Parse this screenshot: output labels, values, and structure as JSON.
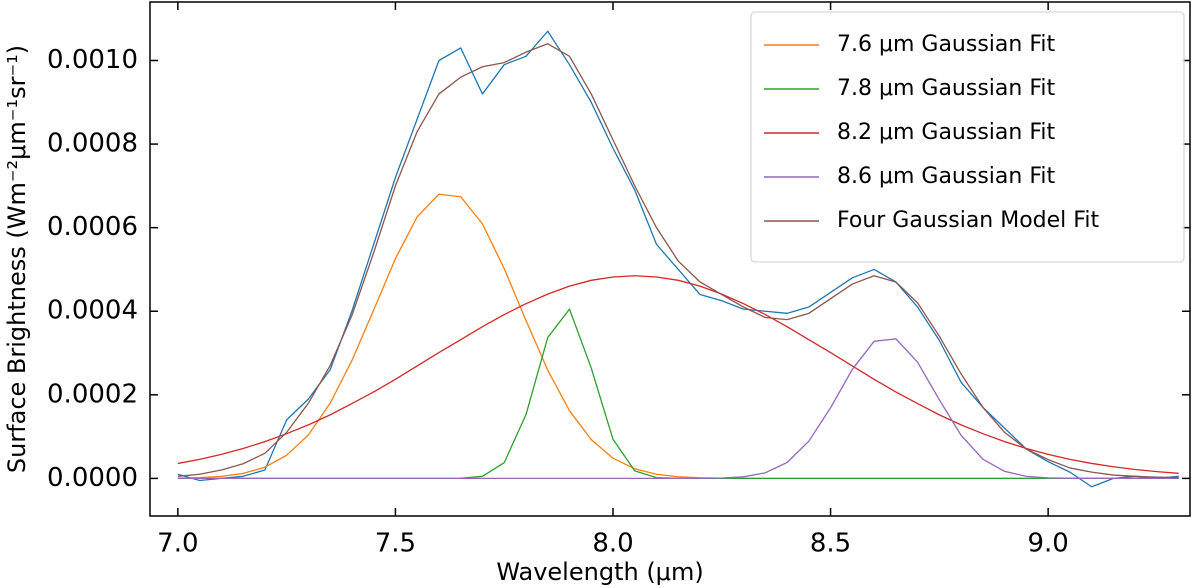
{
  "chart_data": {
    "type": "line",
    "x_label": "Wavelength (μm)",
    "y_label": "Surface Brightness (Wm⁻²μm⁻¹sr⁻¹)",
    "xlim": [
      6.936,
      9.326
    ],
    "ylim": [
      -9e-05,
      0.00114
    ],
    "xticks": [
      {
        "value": 7,
        "label": "7.0"
      },
      7.5,
      {
        "value": 8,
        "label": "8.0"
      },
      8.5,
      {
        "value": 9,
        "label": "9.0"
      }
    ],
    "yticks": [
      {
        "value": 0,
        "label": "0.0000"
      },
      0.0002,
      0.0004,
      0.0006,
      0.0008,
      {
        "value": 0.001,
        "label": "0.0010"
      }
    ],
    "legend": "upper right",
    "x": [
      7.0,
      7.05,
      7.1,
      7.15,
      7.2,
      7.25,
      7.3,
      7.35,
      7.4,
      7.45,
      7.5,
      7.55,
      7.6,
      7.65,
      7.7,
      7.75,
      7.8,
      7.85,
      7.9,
      7.95,
      8.0,
      8.05,
      8.1,
      8.15,
      8.2,
      8.25,
      8.3,
      8.35,
      8.4,
      8.45,
      8.5,
      8.55,
      8.6,
      8.65,
      8.7,
      8.75,
      8.8,
      8.85,
      8.9,
      8.95,
      9.0,
      9.05,
      9.1,
      9.15,
      9.2,
      9.25,
      9.3
    ],
    "series": [
      {
        "color": "#1f77b4",
        "values": [
          1e-05,
          -5e-06,
          0,
          5e-06,
          2e-05,
          0.00014,
          0.00019,
          0.00026,
          0.0004,
          0.00056,
          0.00072,
          0.00086,
          0.001,
          0.00103,
          0.00092,
          0.00099,
          0.00101,
          0.00107,
          0.00099,
          0.0009,
          0.00079,
          0.00069,
          0.00056,
          0.0005,
          0.00044,
          0.000425,
          0.000405,
          0.0004,
          0.000395,
          0.00041,
          0.000445,
          0.00048,
          0.0005,
          0.00047,
          0.00041,
          0.00033,
          0.00023,
          0.00017,
          0.00012,
          7e-05,
          4e-05,
          1.5e-05,
          -2e-05,
          0,
          5e-06,
          0,
          5e-06
        ]
      },
      {
        "name": "7.6 μm Gaussian Fit",
        "color": "#ff7f0e",
        "values": [
          6e-07,
          1.8e-06,
          4.8e-06,
          1.19e-05,
          2.68e-05,
          5.55e-05,
          0.000104,
          0.00018,
          0.000282,
          0.000403,
          0.000526,
          0.000626,
          0.00068,
          0.000674,
          0.000609,
          0.000502,
          0.000378,
          0.000259,
          0.000162,
          9.27e-05,
          4.83e-05,
          2.3e-05,
          1e-05,
          3.9e-06,
          1.4e-06,
          5e-07,
          1e-07,
          0,
          0,
          0,
          0,
          0,
          0,
          0,
          0,
          0,
          0,
          0,
          0,
          0,
          0,
          0,
          0,
          0,
          0,
          0,
          0
        ]
      },
      {
        "name": "7.8 μm Gaussian Fit",
        "color": "#2ca02c",
        "values": [
          0,
          0,
          0,
          0,
          0,
          0,
          0,
          0,
          0,
          0,
          0,
          0,
          0,
          4e-07,
          5e-06,
          3.75e-05,
          0.0001525,
          0.000337,
          0.000405,
          0.000264,
          9.36e-05,
          1.8e-05,
          1.9e-06,
          0,
          0,
          0,
          0,
          0,
          0,
          0,
          0,
          0,
          0,
          0,
          0,
          0,
          0,
          0,
          0,
          0,
          0,
          0,
          0,
          0,
          0,
          0,
          0
        ]
      },
      {
        "name": "8.2 μm Gaussian Fit",
        "color": "#d62728",
        "values": [
          3.58e-05,
          4.56e-05,
          5.75e-05,
          7.15e-05,
          8.8e-05,
          0.000107,
          0.000128,
          0.000152,
          0.000179,
          0.000207,
          0.000237,
          0.000269,
          0.000301,
          0.000332,
          0.000363,
          0.000392,
          0.000418,
          0.000441,
          0.00046,
          0.000474,
          0.000482,
          0.000485,
          0.000482,
          0.000474,
          0.00046,
          0.000441,
          0.000418,
          0.000392,
          0.000363,
          0.000332,
          0.000301,
          0.000269,
          0.000237,
          0.000207,
          0.000179,
          0.000152,
          0.000128,
          0.000107,
          8.8e-05,
          7.15e-05,
          5.75e-05,
          4.56e-05,
          3.58e-05,
          2.78e-05,
          2.13e-05,
          1.61e-05,
          1.21e-05
        ]
      },
      {
        "name": "8.6 μm Gaussian Fit",
        "color": "#9467bd",
        "values": [
          0,
          0,
          0,
          0,
          0,
          0,
          0,
          0,
          0,
          0,
          0,
          0,
          0,
          0,
          0,
          0,
          0,
          0,
          0,
          0,
          0,
          0,
          0,
          0,
          2e-07,
          9e-07,
          3.8e-06,
          1.33e-05,
          3.8e-05,
          8.9e-05,
          0.000169,
          0.000261,
          0.000328,
          0.000334,
          0.000278,
          0.000188,
          0.000103,
          4.6e-05,
          1.67e-05,
          4.9e-06,
          1.2e-06,
          2e-07,
          0,
          0,
          0,
          0,
          0
        ]
      },
      {
        "name": "Four Gaussian Model Fit",
        "color": "#8c564b",
        "values": [
          5e-06,
          1e-05,
          2e-05,
          3.5e-05,
          6e-05,
          0.00011,
          0.00018,
          0.00027,
          0.00039,
          0.00054,
          0.0007,
          0.00083,
          0.00092,
          0.00096,
          0.000985,
          0.000995,
          0.00102,
          0.00104,
          0.00101,
          0.00092,
          0.00081,
          0.0007,
          0.0006,
          0.00052,
          0.00047,
          0.00044,
          0.00041,
          0.000385,
          0.00038,
          0.000395,
          0.00043,
          0.000465,
          0.000485,
          0.00047,
          0.00042,
          0.00034,
          0.00025,
          0.00017,
          0.00011,
          7e-05,
          4.5e-05,
          2.5e-05,
          1.5e-05,
          8e-06,
          5e-06,
          3e-06,
          2e-06
        ]
      }
    ]
  }
}
